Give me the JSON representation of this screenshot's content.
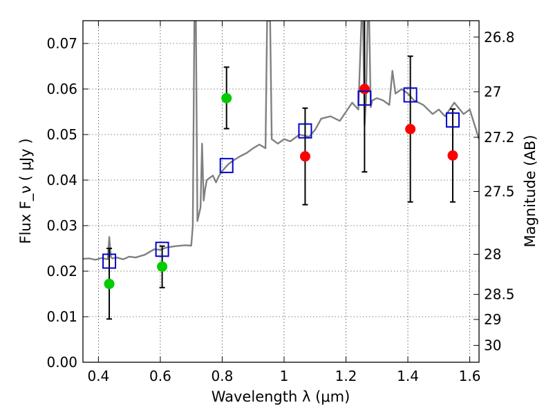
{
  "chart_data": {
    "type": "scatter",
    "xlabel": "Wavelength  λ (μm)",
    "ylabel": "Flux  F_ν  ( μJy )",
    "y2label": "Magnitude (AB)",
    "xlim": [
      0.35,
      1.63
    ],
    "ylim": [
      0.0,
      0.075
    ],
    "grid": true,
    "x_ticks": [
      0.4,
      0.6,
      0.8,
      1.0,
      1.2,
      1.4,
      1.6
    ],
    "x_tick_labels": [
      "0.4",
      "0.6",
      "0.8",
      "1",
      "1.2",
      "1.4",
      "1.6"
    ],
    "y_ticks": [
      0.0,
      0.01,
      0.02,
      0.03,
      0.04,
      0.05,
      0.06,
      0.07
    ],
    "y_tick_labels": [
      "0.00",
      "0.01",
      "0.02",
      "0.03",
      "0.04",
      "0.05",
      "0.06",
      "0.07"
    ],
    "y2_ticks": [
      {
        "label": "26.8",
        "flux": 0.0714
      },
      {
        "label": "27",
        "flux": 0.0594
      },
      {
        "label": "27.2",
        "flux": 0.0494
      },
      {
        "label": "27.5",
        "flux": 0.0375
      },
      {
        "label": "28",
        "flux": 0.0237
      },
      {
        "label": "28.5",
        "flux": 0.0149
      },
      {
        "label": "29",
        "flux": 0.0094
      },
      {
        "label": "30",
        "flux": 0.0037
      }
    ],
    "spectrum": {
      "color": "#808080",
      "x": [
        0.35,
        0.37,
        0.39,
        0.41,
        0.43,
        0.435,
        0.44,
        0.445,
        0.46,
        0.48,
        0.5,
        0.52,
        0.55,
        0.58,
        0.6,
        0.62,
        0.65,
        0.68,
        0.7,
        0.705,
        0.71,
        0.712,
        0.715,
        0.72,
        0.73,
        0.735,
        0.74,
        0.745,
        0.75,
        0.76,
        0.77,
        0.78,
        0.79,
        0.8,
        0.82,
        0.84,
        0.86,
        0.88,
        0.9,
        0.92,
        0.94,
        0.945,
        0.95,
        0.955,
        0.96,
        0.98,
        1.0,
        1.02,
        1.05,
        1.08,
        1.1,
        1.12,
        1.15,
        1.18,
        1.2,
        1.22,
        1.24,
        1.25,
        1.255,
        1.26,
        1.265,
        1.27,
        1.275,
        1.28,
        1.285,
        1.3,
        1.32,
        1.34,
        1.35,
        1.36,
        1.38,
        1.4,
        1.42,
        1.45,
        1.48,
        1.5,
        1.52,
        1.55,
        1.58,
        1.6,
        1.63
      ],
      "y": [
        0.0227,
        0.0228,
        0.0225,
        0.0229,
        0.0226,
        0.0275,
        0.0232,
        0.0228,
        0.023,
        0.0226,
        0.0232,
        0.023,
        0.0236,
        0.0248,
        0.0247,
        0.0252,
        0.0255,
        0.0257,
        0.0256,
        0.03,
        0.075,
        0.075,
        0.075,
        0.031,
        0.034,
        0.048,
        0.0355,
        0.038,
        0.04,
        0.0405,
        0.041,
        0.0395,
        0.041,
        0.042,
        0.0435,
        0.0445,
        0.0453,
        0.046,
        0.047,
        0.0478,
        0.047,
        0.075,
        0.075,
        0.075,
        0.049,
        0.048,
        0.049,
        0.0485,
        0.05,
        0.0495,
        0.051,
        0.0535,
        0.054,
        0.053,
        0.055,
        0.057,
        0.0555,
        0.075,
        0.075,
        0.052,
        0.058,
        0.075,
        0.075,
        0.056,
        0.0575,
        0.058,
        0.0575,
        0.0565,
        0.064,
        0.059,
        0.06,
        0.059,
        0.0575,
        0.0565,
        0.0545,
        0.0555,
        0.054,
        0.057,
        0.0545,
        0.0555,
        0.049
      ]
    },
    "series": [
      {
        "marker": "circle",
        "color": "#00cc00",
        "points": [
          {
            "x": 0.435,
            "y": 0.0172,
            "err_lo": 0.0095,
            "err_hi": 0.025
          },
          {
            "x": 0.606,
            "y": 0.021,
            "err_lo": 0.0164,
            "err_hi": 0.0255
          },
          {
            "x": 0.814,
            "y": 0.058,
            "err_lo": 0.0513,
            "err_hi": 0.0648
          }
        ]
      },
      {
        "marker": "circle",
        "color": "#ff0000",
        "points": [
          {
            "x": 1.068,
            "y": 0.0452,
            "err_lo": 0.0346,
            "err_hi": 0.0558
          },
          {
            "x": 1.26,
            "y": 0.06,
            "err_lo": 0.0418,
            "err_hi": 0.078
          },
          {
            "x": 1.408,
            "y": 0.0512,
            "err_lo": 0.0352,
            "err_hi": 0.0672
          },
          {
            "x": 1.545,
            "y": 0.0454,
            "err_lo": 0.0352,
            "err_hi": 0.0556
          }
        ]
      },
      {
        "marker": "square",
        "color": "#0000cc",
        "points": [
          {
            "x": 0.435,
            "y": 0.0222
          },
          {
            "x": 0.606,
            "y": 0.0248
          },
          {
            "x": 0.814,
            "y": 0.0432
          },
          {
            "x": 1.068,
            "y": 0.0508
          },
          {
            "x": 1.26,
            "y": 0.058
          },
          {
            "x": 1.408,
            "y": 0.0587
          },
          {
            "x": 1.545,
            "y": 0.0532
          }
        ]
      }
    ]
  }
}
